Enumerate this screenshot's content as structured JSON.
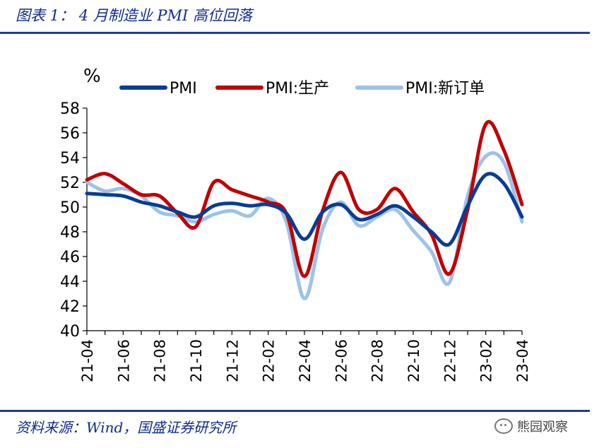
{
  "header": {
    "title": "图表 1： 4 月制造业 PMI 高位回落"
  },
  "footer": {
    "source": "资料来源：Wind，国盛证券研究所",
    "watermark": "熊园观察"
  },
  "chart_data": {
    "type": "line",
    "unit": "%",
    "ylim": [
      40,
      58
    ],
    "yticks": [
      40,
      42,
      44,
      46,
      48,
      50,
      52,
      54,
      56,
      58
    ],
    "x": [
      "21-04",
      "21-05",
      "21-06",
      "21-07",
      "21-08",
      "21-09",
      "21-10",
      "21-11",
      "21-12",
      "22-01",
      "22-02",
      "22-03",
      "22-04",
      "22-05",
      "22-06",
      "22-07",
      "22-08",
      "22-09",
      "22-10",
      "22-11",
      "22-12",
      "23-01",
      "23-02",
      "23-03",
      "23-04"
    ],
    "xticks": [
      "21-04",
      "21-06",
      "21-08",
      "21-10",
      "21-12",
      "22-02",
      "22-04",
      "22-06",
      "22-08",
      "22-10",
      "22-12",
      "23-02",
      "23-04"
    ],
    "grid": false,
    "legend_position": "top",
    "series": [
      {
        "name": "PMI",
        "color": "#0a3d91",
        "values": [
          51.1,
          51.0,
          50.9,
          50.4,
          50.1,
          49.6,
          49.2,
          50.1,
          50.3,
          50.1,
          50.2,
          49.5,
          47.4,
          49.6,
          50.2,
          49.0,
          49.4,
          50.1,
          49.2,
          48.0,
          47.0,
          50.1,
          52.6,
          51.9,
          49.2
        ]
      },
      {
        "name": "PMI:生产",
        "color": "#c00000",
        "values": [
          52.2,
          52.7,
          51.9,
          51.0,
          50.9,
          49.5,
          48.4,
          52.0,
          51.4,
          50.9,
          50.4,
          49.5,
          44.4,
          49.7,
          52.8,
          49.8,
          49.8,
          51.5,
          49.6,
          47.8,
          44.6,
          49.8,
          56.7,
          54.6,
          50.2
        ]
      },
      {
        "name": "PMI:新订单",
        "color": "#9dc3e6",
        "values": [
          52.0,
          51.3,
          51.5,
          50.9,
          49.6,
          49.3,
          48.8,
          49.4,
          49.7,
          49.3,
          50.7,
          48.8,
          42.6,
          48.2,
          50.4,
          48.5,
          49.2,
          49.8,
          48.1,
          46.4,
          43.9,
          50.9,
          54.1,
          53.6,
          48.8
        ]
      }
    ]
  }
}
